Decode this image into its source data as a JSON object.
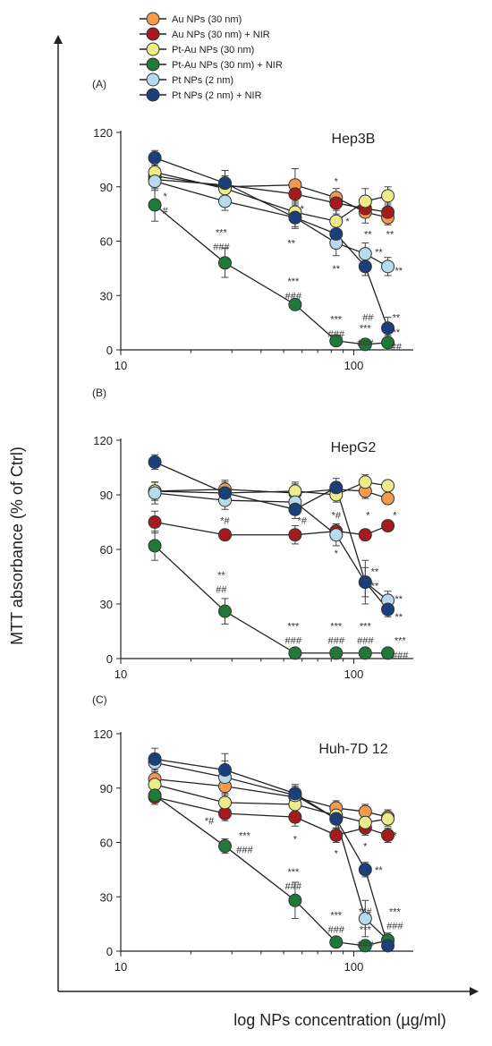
{
  "legend": [
    {
      "label": "Au NPs (30 nm)",
      "color": "#f39a4f"
    },
    {
      "label": "Au NPs  (30 nm) + NIR",
      "color": "#a51b1d"
    },
    {
      "label": "Pt-Au NPs (30 nm)",
      "color": "#ecec8a"
    },
    {
      "label": "Pt-Au NPs (30 nm) + NIR",
      "color": "#1f7a3a"
    },
    {
      "label": "Pt NPs (2 nm)",
      "color": "#b6dbee"
    },
    {
      "label": "Pt NPs (2 nm) + NIR",
      "color": "#1b3f7a"
    }
  ],
  "ylabel": "MTT absorbance (% of Ctrl)",
  "xlabel": "log NPs concentration (µg/ml)",
  "chart_data": [
    {
      "type": "line",
      "panel_label": "(A)",
      "title": "Hep3B",
      "xscale": "log",
      "xlim": [
        10,
        180
      ],
      "ylim": [
        0,
        120
      ],
      "xticks": [
        10,
        100
      ],
      "yticks": [
        0,
        30,
        60,
        90,
        120
      ],
      "x": [
        14,
        28,
        56,
        84,
        112,
        140
      ],
      "series": [
        {
          "name": "Au NPs (30 nm)",
          "values": [
            96,
            90,
            91,
            84,
            76,
            73
          ],
          "errors": [
            4,
            6,
            9,
            5,
            6,
            4
          ]
        },
        {
          "name": "Au NPs  (30 nm) + NIR",
          "values": [
            94,
            91,
            86,
            81,
            78,
            76
          ],
          "errors": [
            4,
            5,
            6,
            6,
            5,
            5
          ]
        },
        {
          "name": "Pt-Au NPs (30 nm)",
          "values": [
            98,
            89,
            76,
            71,
            82,
            85
          ],
          "errors": [
            4,
            6,
            5,
            6,
            7,
            5
          ]
        },
        {
          "name": "Pt-Au NPs (30 nm) + NIR",
          "values": [
            80,
            48,
            25,
            5,
            3,
            4
          ],
          "errors": [
            9,
            8,
            3,
            2,
            2,
            4
          ]
        },
        {
          "name": "Pt NPs (2 nm)",
          "values": [
            93,
            82,
            73,
            59,
            53,
            46
          ],
          "errors": [
            5,
            5,
            5,
            7,
            6,
            5
          ]
        },
        {
          "name": "Pt NPs (2 nm) + NIR",
          "values": [
            106,
            92,
            73,
            64,
            46,
            12
          ],
          "errors": [
            4,
            7,
            6,
            6,
            5,
            6
          ]
        }
      ],
      "annotations": [
        {
          "text": "*",
          "x": 15.5,
          "y": 85
        },
        {
          "text": "#",
          "x": 15.5,
          "y": 77
        },
        {
          "text": "***",
          "x": 27,
          "y": 65
        },
        {
          "text": "###",
          "x": 27,
          "y": 57
        },
        {
          "text": "*",
          "x": 60,
          "y": 78
        },
        {
          "text": "**",
          "x": 54,
          "y": 59
        },
        {
          "text": "***",
          "x": 55,
          "y": 38
        },
        {
          "text": "###",
          "x": 55,
          "y": 30
        },
        {
          "text": "*",
          "x": 84,
          "y": 93
        },
        {
          "text": "*",
          "x": 94,
          "y": 71
        },
        {
          "text": "**",
          "x": 84,
          "y": 45
        },
        {
          "text": "**",
          "x": 115,
          "y": 64
        },
        {
          "text": "**",
          "x": 143,
          "y": 64
        },
        {
          "text": "**",
          "x": 128,
          "y": 54
        },
        {
          "text": "**",
          "x": 156,
          "y": 44
        },
        {
          "text": "***",
          "x": 84,
          "y": 17
        },
        {
          "text": "###",
          "x": 84,
          "y": 9
        },
        {
          "text": "##",
          "x": 115,
          "y": 18
        },
        {
          "text": "***",
          "x": 112,
          "y": 12
        },
        {
          "text": "###",
          "x": 112,
          "y": 4
        },
        {
          "text": "**",
          "x": 152,
          "y": 18
        },
        {
          "text": "**",
          "x": 152,
          "y": 10
        },
        {
          "text": "##",
          "x": 152,
          "y": 2
        }
      ]
    },
    {
      "type": "line",
      "panel_label": "(B)",
      "title": "HepG2",
      "xscale": "log",
      "xlim": [
        10,
        180
      ],
      "ylim": [
        0,
        120
      ],
      "xticks": [
        10,
        100
      ],
      "yticks": [
        0,
        30,
        60,
        90,
        120
      ],
      "x": [
        14,
        28,
        56,
        84,
        112,
        140
      ],
      "series": [
        {
          "name": "Au NPs (30 nm)",
          "values": [
            92,
            93,
            91,
            93,
            92,
            88
          ],
          "errors": [
            5,
            5,
            6,
            4,
            4,
            3
          ]
        },
        {
          "name": "Au NPs  (30 nm) + NIR",
          "values": [
            75,
            68,
            68,
            70,
            68,
            73
          ],
          "errors": [
            6,
            3,
            5,
            3,
            3,
            3
          ]
        },
        {
          "name": "Pt-Au NPs (30 nm)",
          "values": [
            92,
            91,
            92,
            90,
            97,
            95
          ],
          "errors": [
            5,
            4,
            4,
            4,
            4,
            3
          ]
        },
        {
          "name": "Pt-Au NPs (30 nm) + NIR",
          "values": [
            62,
            26,
            3,
            3,
            3,
            3
          ],
          "errors": [
            8,
            7,
            2,
            2,
            2,
            2
          ]
        },
        {
          "name": "Pt NPs (2 nm)",
          "values": [
            91,
            87,
            86,
            68,
            42,
            32
          ],
          "errors": [
            6,
            5,
            5,
            6,
            8,
            5
          ]
        },
        {
          "name": "Pt NPs (2 nm) + NIR",
          "values": [
            108,
            91,
            82,
            94,
            42,
            27
          ],
          "errors": [
            4,
            6,
            5,
            5,
            12,
            4
          ]
        }
      ],
      "annotations": [
        {
          "text": "*#",
          "x": 28,
          "y": 76
        },
        {
          "text": "*#",
          "x": 60,
          "y": 76
        },
        {
          "text": "*#",
          "x": 84,
          "y": 79
        },
        {
          "text": "*",
          "x": 84,
          "y": 58
        },
        {
          "text": "*",
          "x": 115,
          "y": 79
        },
        {
          "text": "*",
          "x": 150,
          "y": 79
        },
        {
          "text": "**",
          "x": 123,
          "y": 48
        },
        {
          "text": "**",
          "x": 123,
          "y": 40
        },
        {
          "text": "**",
          "x": 156,
          "y": 33
        },
        {
          "text": "**",
          "x": 156,
          "y": 23
        },
        {
          "text": "**",
          "x": 27,
          "y": 46
        },
        {
          "text": "##",
          "x": 27,
          "y": 38
        },
        {
          "text": "***",
          "x": 55,
          "y": 18
        },
        {
          "text": "###",
          "x": 55,
          "y": 10
        },
        {
          "text": "***",
          "x": 84,
          "y": 18
        },
        {
          "text": "###",
          "x": 84,
          "y": 10
        },
        {
          "text": "***",
          "x": 112,
          "y": 18
        },
        {
          "text": "###",
          "x": 112,
          "y": 10
        },
        {
          "text": "***",
          "x": 158,
          "y": 10
        },
        {
          "text": "###",
          "x": 158,
          "y": 2
        }
      ]
    },
    {
      "type": "line",
      "panel_label": "(C)",
      "title": "Huh-7D 12",
      "xscale": "log",
      "xlim": [
        10,
        180
      ],
      "ylim": [
        0,
        120
      ],
      "xticks": [
        10,
        100
      ],
      "yticks": [
        0,
        30,
        60,
        90,
        120
      ],
      "x": [
        14,
        28,
        56,
        84,
        112,
        140
      ],
      "series": [
        {
          "name": "Au NPs (30 nm)",
          "values": [
            95,
            91,
            85,
            79,
            77,
            74
          ],
          "errors": [
            4,
            5,
            5,
            4,
            4,
            4
          ]
        },
        {
          "name": "Au NPs  (30 nm) + NIR",
          "values": [
            85,
            76,
            74,
            64,
            68,
            64
          ],
          "errors": [
            4,
            4,
            5,
            4,
            4,
            4
          ]
        },
        {
          "name": "Pt-Au NPs (30 nm)",
          "values": [
            92,
            82,
            81,
            75,
            71,
            73
          ],
          "errors": [
            4,
            5,
            5,
            4,
            5,
            4
          ]
        },
        {
          "name": "Pt-Au NPs (30 nm) + NIR",
          "values": [
            86,
            58,
            28,
            5,
            3,
            6
          ],
          "errors": [
            4,
            4,
            10,
            2,
            2,
            2
          ]
        },
        {
          "name": "Pt NPs (2 nm)",
          "values": [
            104,
            96,
            86,
            73,
            18,
            6
          ],
          "errors": [
            5,
            9,
            5,
            5,
            10,
            4
          ]
        },
        {
          "name": "Pt NPs (2 nm) + NIR",
          "values": [
            106,
            100,
            87,
            73,
            45,
            3
          ],
          "errors": [
            6,
            9,
            5,
            6,
            4,
            3
          ]
        }
      ],
      "annotations": [
        {
          "text": "*#",
          "x": 24,
          "y": 72
        },
        {
          "text": "***",
          "x": 34,
          "y": 64
        },
        {
          "text": "###",
          "x": 34,
          "y": 56
        },
        {
          "text": "*",
          "x": 56,
          "y": 62
        },
        {
          "text": "*",
          "x": 84,
          "y": 54
        },
        {
          "text": "*",
          "x": 112,
          "y": 58
        },
        {
          "text": "*",
          "x": 150,
          "y": 64
        },
        {
          "text": "**",
          "x": 128,
          "y": 45
        },
        {
          "text": "***",
          "x": 55,
          "y": 44
        },
        {
          "text": "###",
          "x": 55,
          "y": 36
        },
        {
          "text": "***",
          "x": 84,
          "y": 20
        },
        {
          "text": "###",
          "x": 84,
          "y": 12
        },
        {
          "text": "**#",
          "x": 112,
          "y": 22
        },
        {
          "text": "***",
          "x": 112,
          "y": 12
        },
        {
          "text": "###",
          "x": 112,
          "y": 4
        },
        {
          "text": "***",
          "x": 150,
          "y": 22
        },
        {
          "text": "###",
          "x": 150,
          "y": 14
        }
      ]
    }
  ]
}
